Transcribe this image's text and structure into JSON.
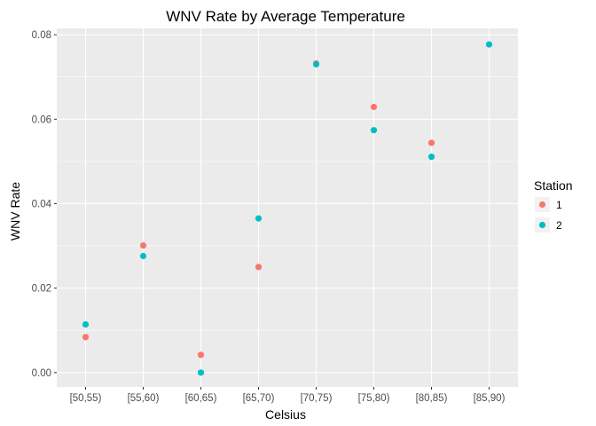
{
  "chart_data": {
    "type": "scatter",
    "title": "WNV Rate by Average Temperature",
    "xlabel": "Celsius",
    "ylabel": "WNV Rate",
    "categories": [
      "[50,55)",
      "[55,60)",
      "[60,65)",
      "[65,70)",
      "[70,75)",
      "[75,80)",
      "[80,85)",
      "[85,90)"
    ],
    "ylim": [
      -0.0034,
      0.0815
    ],
    "yticks": [
      0.0,
      0.02,
      0.04,
      0.06,
      0.08
    ],
    "ytick_labels": [
      "0.00",
      "0.02",
      "0.04",
      "0.06",
      "0.08"
    ],
    "grid": true,
    "legend": {
      "title": "Station",
      "position": "right"
    },
    "series": [
      {
        "name": "1",
        "color": "#F8766D",
        "values": [
          0.0084,
          0.0301,
          0.0042,
          0.025,
          0.0732,
          0.0629,
          0.0544,
          null
        ]
      },
      {
        "name": "2",
        "color": "#00BFC4",
        "values": [
          0.0114,
          0.0276,
          0.0,
          0.0365,
          0.073,
          0.0574,
          0.0511,
          0.0777
        ]
      }
    ]
  }
}
